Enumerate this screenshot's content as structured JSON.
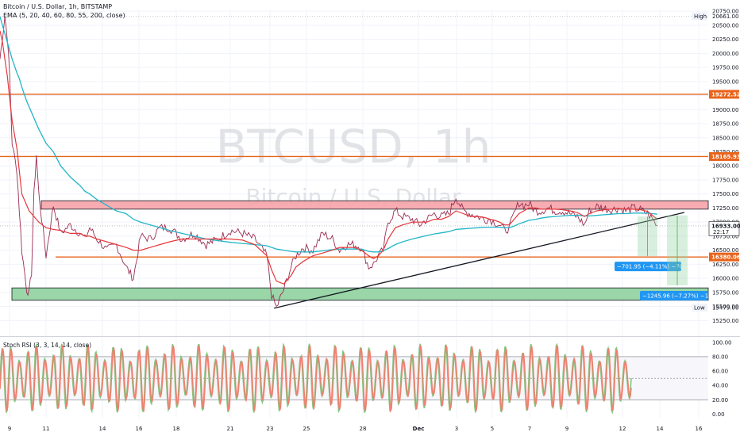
{
  "header": {
    "title": "Bitcoin / U.S. Dollar, 1h, BITSTAMP",
    "ema_label": "EMA (5, 20, 40, 60, 80, 55, 200, close)"
  },
  "watermark": {
    "symbol": "BTCUSD, 1h",
    "name": "Bitcoin / U.S. Dollar"
  },
  "colors": {
    "price": "#9b2d52",
    "ema_fast": "#e5383b",
    "ema_slow": "#22b5c7",
    "level_line": "#e8631c",
    "zone_red": "#f5a3a8",
    "zone_green": "#8fd19e",
    "rsi_k": "#7fc97f",
    "rsi_d": "#f08070",
    "label_blue": "#2196f3"
  },
  "chart_data": [
    {
      "type": "line",
      "name": "BTCUSD 1h price",
      "x_ticks": [
        "9",
        "11",
        "14",
        "16",
        "18",
        "21",
        "23",
        "25",
        "28",
        "Dec",
        "3",
        "5",
        "7",
        "9",
        "12",
        "14",
        "16"
      ],
      "y_ticks": [
        15250,
        15500,
        15750,
        16000,
        16250,
        16500,
        16750,
        17000,
        17250,
        17500,
        17750,
        18000,
        18250,
        18500,
        18750,
        19000,
        19250,
        19500,
        19750,
        20000,
        20250,
        20500,
        20750
      ],
      "ylim": [
        15170,
        20780
      ],
      "price_x": [
        0,
        1,
        2,
        3,
        4,
        5,
        7,
        8,
        9,
        11,
        12,
        13,
        14,
        15,
        16,
        19,
        22,
        25,
        29,
        33,
        35,
        37,
        40,
        44,
        48,
        52,
        55,
        58,
        62,
        66,
        70,
        75,
        80,
        85,
        90,
        95,
        100,
        105,
        110,
        112,
        114,
        117,
        120,
        122,
        125,
        129,
        133,
        137,
        140,
        143,
        146,
        149,
        152,
        154,
        156,
        158,
        160,
        163,
        166,
        170,
        173,
        176,
        179,
        182,
        185,
        188,
        191,
        194,
        197,
        200,
        202,
        204,
        206,
        208,
        210,
        212,
        214,
        216,
        218,
        221,
        223,
        226,
        229,
        232,
        235,
        238,
        241,
        243,
        246,
        249,
        252,
        255,
        258,
        261,
        264,
        267,
        269,
        271
      ],
      "price_y": [
        19900,
        20300,
        20661,
        20300,
        19600,
        18400,
        17900,
        17200,
        16500,
        15800,
        15750,
        16100,
        17500,
        18200,
        17500,
        16400,
        17300,
        16800,
        16950,
        16800,
        16700,
        16900,
        16700,
        16500,
        16600,
        16200,
        16000,
        16750,
        16700,
        16900,
        16900,
        16700,
        16800,
        16600,
        16700,
        16850,
        16800,
        16700,
        16400,
        15700,
        15479,
        15800,
        16200,
        16400,
        16550,
        16500,
        16800,
        16700,
        16500,
        16600,
        16600,
        16550,
        16200,
        16250,
        16400,
        16500,
        17000,
        17200,
        17100,
        17050,
        16950,
        17050,
        17150,
        17100,
        17150,
        17450,
        17200,
        17150,
        17100,
        17050,
        17050,
        17000,
        16950,
        16850,
        16900,
        17150,
        17350,
        17300,
        17320,
        17200,
        17200,
        17250,
        17200,
        17200,
        17150,
        17100,
        16950,
        17200,
        17280,
        17250,
        17220,
        17250,
        17200,
        17250,
        17220,
        17150,
        17050,
        16933
      ],
      "ema_fast_y": [
        20400,
        20200,
        19900,
        19600,
        19200,
        18800,
        18300,
        17900,
        17500,
        17300,
        17200,
        17150,
        17100,
        17050,
        17000,
        16900,
        16870,
        16850,
        16800,
        16800,
        16750,
        16750,
        16700,
        16650,
        16600,
        16550,
        16500,
        16500,
        16550,
        16600,
        16650,
        16700,
        16700,
        16700,
        16700,
        16700,
        16680,
        16600,
        16400,
        16150,
        15950,
        15900,
        16050,
        16200,
        16300,
        16400,
        16450,
        16500,
        16550,
        16550,
        16550,
        16500,
        16400,
        16350,
        16400,
        16500,
        16700,
        16900,
        16950,
        17000,
        17000,
        17000,
        17050,
        17050,
        17100,
        17200,
        17150,
        17100,
        17100,
        17080,
        17050,
        17030,
        17000,
        16950,
        16950,
        17050,
        17150,
        17200,
        17250,
        17250,
        17230,
        17230,
        17230,
        17220,
        17200,
        17170,
        17100,
        17150,
        17200,
        17220,
        17230,
        17240,
        17230,
        17230,
        17220,
        17190,
        17120,
        17050
      ],
      "ema_slow_y": [
        20650,
        20500,
        20350,
        20200,
        20050,
        19900,
        19650,
        19550,
        19400,
        19150,
        19050,
        18950,
        18850,
        18750,
        18650,
        18400,
        18250,
        18000,
        17800,
        17650,
        17550,
        17500,
        17400,
        17300,
        17200,
        17150,
        17050,
        17000,
        16950,
        16900,
        16850,
        16800,
        16750,
        16700,
        16670,
        16640,
        16620,
        16600,
        16580,
        16550,
        16520,
        16500,
        16480,
        16470,
        16470,
        16470,
        16490,
        16510,
        16520,
        16520,
        16520,
        16520,
        16480,
        16470,
        16470,
        16490,
        16530,
        16600,
        16650,
        16700,
        16730,
        16760,
        16790,
        16810,
        16830,
        16870,
        16880,
        16890,
        16900,
        16910,
        16910,
        16910,
        16910,
        16900,
        16900,
        16930,
        16970,
        17000,
        17030,
        17050,
        17070,
        17090,
        17100,
        17110,
        17120,
        17120,
        17110,
        17110,
        17120,
        17130,
        17140,
        17150,
        17150,
        17160,
        17160,
        17160,
        17150,
        17140
      ],
      "x_domain": [
        0,
        292
      ],
      "levels": [
        {
          "value": 19272.52,
          "label": "19272.52"
        },
        {
          "value": 18165.93,
          "label": "18165.93"
        },
        {
          "value": 16380.06,
          "label": "16380.06"
        }
      ],
      "last_price": {
        "value": 16933,
        "label": "16933.00",
        "countdown": "22:17"
      },
      "high": {
        "value": 20661,
        "label": "20661.00",
        "tag": "High"
      },
      "low": {
        "value": 15479,
        "label": "15479.00",
        "tag": "Low"
      },
      "zones": [
        {
          "kind": "resistance",
          "from": 17230,
          "to": 17380,
          "x_start": 16,
          "x_end": 292
        },
        {
          "kind": "support",
          "from": 15610,
          "to": 15830,
          "x_start": 4,
          "x_end": 292
        }
      ],
      "trendline": {
        "x1": 113,
        "y1": 15470,
        "x2": 293,
        "y2": 17380
      },
      "measures": [
        {
          "label": "−701.95 (−4.11%) −70195",
          "x_start": 275,
          "x_end": 283,
          "y_from": 17100,
          "y_to": 16395
        },
        {
          "label": "−1245.96 (−7.27%) −124596",
          "x_start": 285,
          "x_end": 294,
          "y_from": 17120,
          "y_to": 15875
        }
      ]
    },
    {
      "type": "line",
      "name": "Stoch RSI (3, 3, 14, 14, close)",
      "label": "Stoch RSI (3, 3, 14, 14, close)",
      "y_ticks": [
        0,
        20,
        40,
        60,
        80,
        100
      ],
      "y_tick_labels": [
        "0.00",
        "20.00",
        "40.00",
        "60.00",
        "80.00",
        "100.00"
      ],
      "ylim": [
        -5,
        102
      ],
      "bands": [
        20,
        50,
        80
      ],
      "cycles": 74
    }
  ]
}
